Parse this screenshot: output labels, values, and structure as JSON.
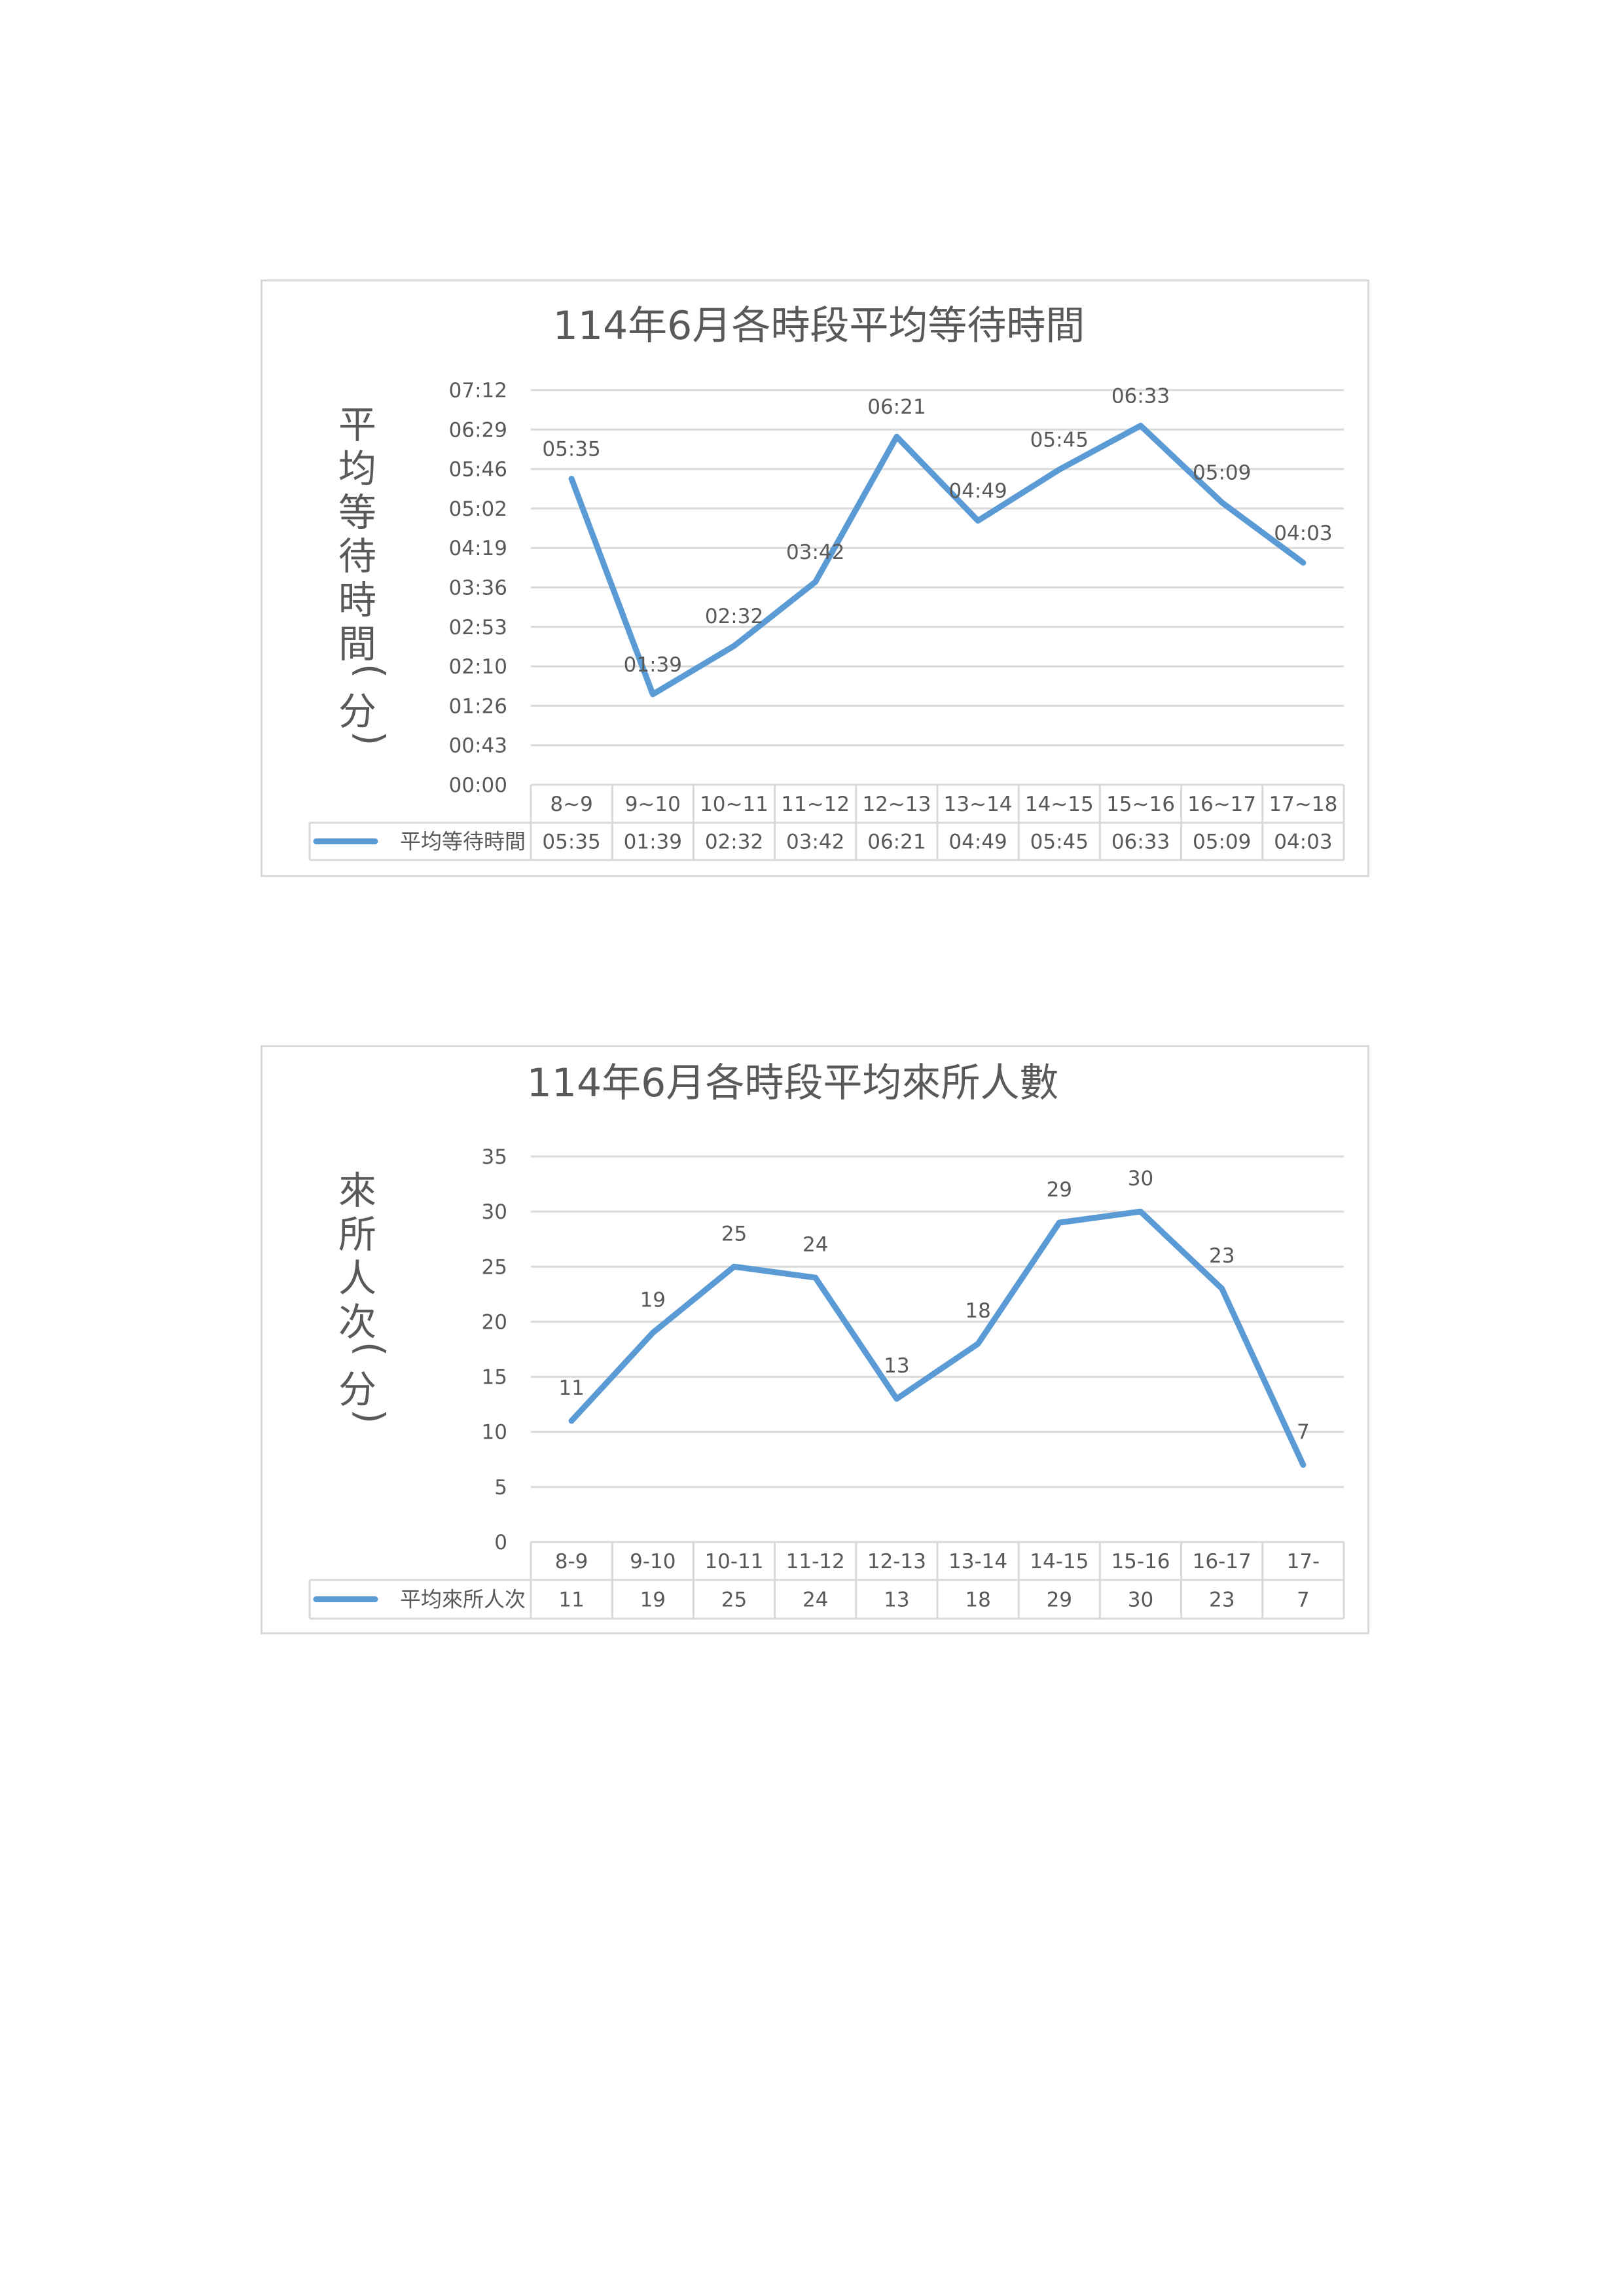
{
  "chart_data": [
    {
      "type": "line",
      "title": "114年6月各時段平均等待時間",
      "ylabel": "平均等待時間(分)",
      "categories": [
        "8~9",
        "9~10",
        "10~11",
        "11~12",
        "12~13",
        "13~14",
        "14~15",
        "15~16",
        "16~17",
        "17~18"
      ],
      "y_tick_labels": [
        "00:00",
        "00:43",
        "01:26",
        "02:10",
        "02:53",
        "03:36",
        "04:19",
        "05:02",
        "05:46",
        "06:29",
        "07:12"
      ],
      "ylim_minutes": [
        0,
        432
      ],
      "series": [
        {
          "name": "平均等待時間",
          "values": [
            5.583,
            1.65,
            2.533,
            3.7,
            6.35,
            4.817,
            5.75,
            6.55,
            5.15,
            4.05
          ],
          "labels": [
            "05:35",
            "01:39",
            "02:32",
            "03:42",
            "06:21",
            "04:49",
            "05:45",
            "06:33",
            "05:09",
            "04:03"
          ],
          "color": "#5b9bd5"
        }
      ],
      "grid": true,
      "legend": "data-table"
    },
    {
      "type": "line",
      "title": "114年6月各時段平均來所人數",
      "ylabel": "來所人次(分)",
      "categories": [
        "8-9",
        "9-10",
        "10-11",
        "11-12",
        "12-13",
        "13-14",
        "14-15",
        "15-16",
        "16-17",
        "17-"
      ],
      "y_tick_labels": [
        "0",
        "5",
        "10",
        "15",
        "20",
        "25",
        "30",
        "35"
      ],
      "ylim": [
        0,
        35
      ],
      "series": [
        {
          "name": "平均來所人次",
          "values": [
            11,
            19,
            25,
            24,
            13,
            18,
            29,
            30,
            23,
            7
          ],
          "labels": [
            "11",
            "19",
            "25",
            "24",
            "13",
            "18",
            "29",
            "30",
            "23",
            "7"
          ],
          "color": "#5b9bd5"
        }
      ],
      "grid": true,
      "legend": "data-table"
    }
  ]
}
